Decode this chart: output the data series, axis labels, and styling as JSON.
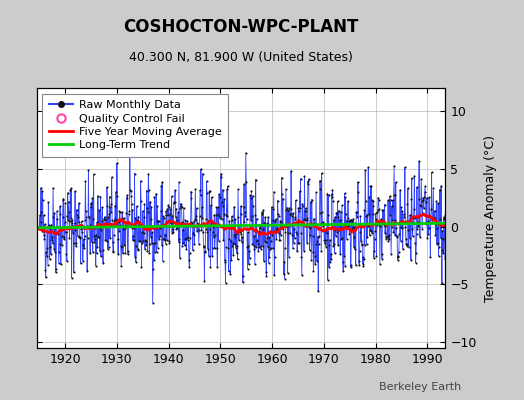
{
  "title": "COSHOCTON-WPC-PLANT",
  "subtitle": "40.300 N, 81.900 W (United States)",
  "ylabel": "Temperature Anomaly (°C)",
  "watermark": "Berkeley Earth",
  "xlim": [
    1914.5,
    1993.5
  ],
  "ylim": [
    -10.5,
    12.0
  ],
  "yticks": [
    -10,
    -5,
    0,
    5,
    10
  ],
  "xticks": [
    1920,
    1930,
    1940,
    1950,
    1960,
    1970,
    1980,
    1990
  ],
  "start_year": 1915,
  "end_year": 1993,
  "raw_color": "#3344ff",
  "dot_color": "#111111",
  "moving_avg_color": "#ff0000",
  "trend_color": "#00cc00",
  "qc_fail_color": "#ff44aa",
  "background_color": "#cccccc",
  "plot_background": "#ffffff",
  "grid_color": "#aaaaaa",
  "seed": 42
}
